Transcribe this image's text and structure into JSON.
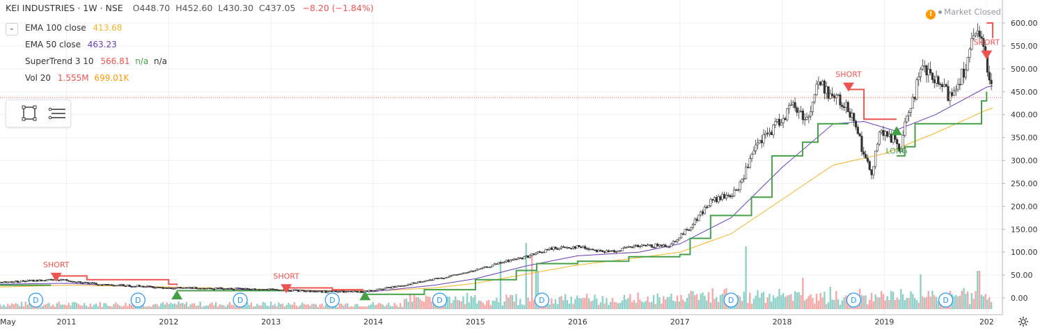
{
  "header": {
    "symbol": "KEI INDUSTRIES · 1W · NSE",
    "open": "O448.70",
    "high": "H452.60",
    "low": "L430.30",
    "close": "C437.05",
    "change": "−8.20 (−1.84%)"
  },
  "indicators": [
    {
      "name": "EMA 100 close",
      "value": "413.68",
      "color": "#f5b324"
    },
    {
      "name": "EMA 50 close",
      "value": "463.23",
      "color": "#673ab7"
    },
    {
      "name": "SuperTrend 3 10",
      "value": "566.81",
      "extra1": "n/a",
      "extra2": "n/a",
      "color": "#ef5350",
      "extra_color": "#43a047"
    },
    {
      "name": "Vol 20",
      "value": "1.555M",
      "extra1": "699.01K",
      "color": "#ef5350",
      "extra_color": "#ff9800"
    }
  ],
  "market_status": {
    "icon": "warning-icon",
    "text": "Market Closed"
  },
  "toolbar": {
    "icons": [
      "rectangle-icon",
      "menu-lines-icon"
    ]
  },
  "settings_icon": "gear-icon",
  "colors": {
    "up": "#26a69a",
    "down": "#ef5350",
    "st_up": "#43a047",
    "st_down": "#ef5350",
    "ema50": "#673ab7",
    "ema100": "#f5b324",
    "price_line": "#ef5350"
  },
  "chart_data": {
    "type": "candlestick",
    "title": "KEI INDUSTRIES · 1W · NSE",
    "y_axis_ticks": [
      "600.00",
      "550.00",
      "500.00",
      "450.00",
      "400.00",
      "350.00",
      "300.00",
      "250.00",
      "200.00",
      "150.00",
      "100.00",
      "50.00",
      "0.00"
    ],
    "ylim": [
      -10,
      620
    ],
    "x_axis_ticks": [
      "May",
      "2011",
      "2012",
      "2013",
      "2014",
      "2015",
      "2016",
      "2017",
      "2018",
      "2019",
      "202"
    ],
    "last_price_label": "437.05",
    "last_price": 437.05,
    "price_series": [
      {
        "t": 2010.35,
        "v": 34
      },
      {
        "t": 2010.7,
        "v": 38
      },
      {
        "t": 2010.95,
        "v": 40
      },
      {
        "t": 2011.3,
        "v": 30
      },
      {
        "t": 2011.7,
        "v": 26
      },
      {
        "t": 2012.0,
        "v": 22
      },
      {
        "t": 2012.5,
        "v": 21
      },
      {
        "t": 2013.0,
        "v": 18
      },
      {
        "t": 2013.5,
        "v": 14
      },
      {
        "t": 2013.9,
        "v": 13
      },
      {
        "t": 2014.3,
        "v": 28
      },
      {
        "t": 2014.7,
        "v": 45
      },
      {
        "t": 2015.0,
        "v": 60
      },
      {
        "t": 2015.3,
        "v": 80
      },
      {
        "t": 2015.5,
        "v": 90
      },
      {
        "t": 2015.75,
        "v": 108
      },
      {
        "t": 2016.0,
        "v": 112
      },
      {
        "t": 2016.3,
        "v": 100
      },
      {
        "t": 2016.55,
        "v": 112
      },
      {
        "t": 2016.9,
        "v": 115
      },
      {
        "t": 2017.1,
        "v": 155
      },
      {
        "t": 2017.3,
        "v": 210
      },
      {
        "t": 2017.55,
        "v": 230
      },
      {
        "t": 2017.75,
        "v": 330
      },
      {
        "t": 2017.95,
        "v": 380
      },
      {
        "t": 2018.1,
        "v": 420
      },
      {
        "t": 2018.25,
        "v": 390
      },
      {
        "t": 2018.35,
        "v": 470
      },
      {
        "t": 2018.55,
        "v": 430
      },
      {
        "t": 2018.7,
        "v": 400
      },
      {
        "t": 2018.8,
        "v": 310
      },
      {
        "t": 2018.87,
        "v": 270
      },
      {
        "t": 2018.95,
        "v": 360
      },
      {
        "t": 2019.1,
        "v": 345
      },
      {
        "t": 2019.15,
        "v": 320
      },
      {
        "t": 2019.25,
        "v": 420
      },
      {
        "t": 2019.38,
        "v": 500
      },
      {
        "t": 2019.5,
        "v": 470
      },
      {
        "t": 2019.65,
        "v": 440
      },
      {
        "t": 2019.78,
        "v": 500
      },
      {
        "t": 2019.9,
        "v": 580
      },
      {
        "t": 2020.0,
        "v": 520
      },
      {
        "t": 2020.06,
        "v": 437
      }
    ],
    "ema50": [
      {
        "t": 2010.35,
        "v": 30
      },
      {
        "t": 2011.0,
        "v": 32
      },
      {
        "t": 2012.0,
        "v": 22
      },
      {
        "t": 2013.0,
        "v": 17
      },
      {
        "t": 2014.0,
        "v": 14
      },
      {
        "t": 2014.6,
        "v": 28
      },
      {
        "t": 2015.0,
        "v": 42
      },
      {
        "t": 2015.5,
        "v": 70
      },
      {
        "t": 2016.0,
        "v": 92
      },
      {
        "t": 2016.6,
        "v": 100
      },
      {
        "t": 2017.0,
        "v": 118
      },
      {
        "t": 2017.5,
        "v": 175
      },
      {
        "t": 2018.0,
        "v": 285
      },
      {
        "t": 2018.5,
        "v": 380
      },
      {
        "t": 2018.8,
        "v": 385
      },
      {
        "t": 2019.1,
        "v": 365
      },
      {
        "t": 2019.5,
        "v": 400
      },
      {
        "t": 2020.0,
        "v": 460
      },
      {
        "t": 2020.06,
        "v": 463
      }
    ],
    "ema100": [
      {
        "t": 2010.35,
        "v": 24
      },
      {
        "t": 2011.0,
        "v": 28
      },
      {
        "t": 2012.0,
        "v": 24
      },
      {
        "t": 2013.0,
        "v": 18
      },
      {
        "t": 2014.0,
        "v": 15
      },
      {
        "t": 2014.6,
        "v": 22
      },
      {
        "t": 2015.0,
        "v": 32
      },
      {
        "t": 2015.5,
        "v": 52
      },
      {
        "t": 2016.0,
        "v": 72
      },
      {
        "t": 2016.6,
        "v": 88
      },
      {
        "t": 2017.0,
        "v": 100
      },
      {
        "t": 2017.5,
        "v": 140
      },
      {
        "t": 2018.0,
        "v": 215
      },
      {
        "t": 2018.5,
        "v": 290
      },
      {
        "t": 2019.0,
        "v": 315
      },
      {
        "t": 2019.5,
        "v": 360
      },
      {
        "t": 2020.0,
        "v": 410
      },
      {
        "t": 2020.06,
        "v": 414
      }
    ],
    "supertrend": [
      {
        "dir": "up",
        "points": [
          {
            "t": 2010.35,
            "v": 28
          },
          {
            "t": 2010.85,
            "v": 28
          }
        ]
      },
      {
        "dir": "down",
        "points": [
          {
            "t": 2010.9,
            "v": 48
          },
          {
            "t": 2011.2,
            "v": 40
          },
          {
            "t": 2012.0,
            "v": 30
          },
          {
            "t": 2012.08,
            "v": 28
          }
        ]
      },
      {
        "dir": "up",
        "points": [
          {
            "t": 2012.08,
            "v": 16
          },
          {
            "t": 2013.15,
            "v": 16
          }
        ]
      },
      {
        "dir": "down",
        "points": [
          {
            "t": 2013.15,
            "v": 22
          },
          {
            "t": 2013.6,
            "v": 18
          },
          {
            "t": 2013.9,
            "v": 16
          }
        ]
      },
      {
        "dir": "up",
        "points": [
          {
            "t": 2013.9,
            "v": 8
          },
          {
            "t": 2014.5,
            "v": 18
          },
          {
            "t": 2015.0,
            "v": 40
          },
          {
            "t": 2015.4,
            "v": 60
          },
          {
            "t": 2015.6,
            "v": 75
          },
          {
            "t": 2016.0,
            "v": 80
          },
          {
            "t": 2016.5,
            "v": 90
          },
          {
            "t": 2017.0,
            "v": 95
          },
          {
            "t": 2017.1,
            "v": 130
          },
          {
            "t": 2017.3,
            "v": 180
          },
          {
            "t": 2017.7,
            "v": 220
          },
          {
            "t": 2017.9,
            "v": 310
          },
          {
            "t": 2018.2,
            "v": 340
          },
          {
            "t": 2018.35,
            "v": 380
          },
          {
            "t": 2018.65,
            "v": 380
          }
        ]
      },
      {
        "dir": "down",
        "points": [
          {
            "t": 2018.65,
            "v": 455
          },
          {
            "t": 2018.75,
            "v": 455
          },
          {
            "t": 2018.8,
            "v": 390
          },
          {
            "t": 2019.12,
            "v": 390
          }
        ]
      },
      {
        "dir": "up",
        "points": [
          {
            "t": 2019.12,
            "v": 310
          },
          {
            "t": 2019.2,
            "v": 330
          },
          {
            "t": 2019.3,
            "v": 380
          },
          {
            "t": 2019.7,
            "v": 380
          },
          {
            "t": 2019.95,
            "v": 430
          },
          {
            "t": 2020.0,
            "v": 450
          }
        ]
      },
      {
        "dir": "down",
        "points": [
          {
            "t": 2020.0,
            "v": 600
          },
          {
            "t": 2020.06,
            "v": 567
          }
        ]
      }
    ],
    "signals": [
      {
        "t": 2010.9,
        "v": 55,
        "type": "sell",
        "label": "SHORT"
      },
      {
        "t": 2012.08,
        "v": -3,
        "type": "buy",
        "label": ""
      },
      {
        "t": 2013.15,
        "v": 30,
        "type": "sell",
        "label": "SHORT"
      },
      {
        "t": 2013.92,
        "v": -5,
        "type": "buy",
        "label": ""
      },
      {
        "t": 2018.65,
        "v": 470,
        "type": "sell",
        "label": "SHORT"
      },
      {
        "t": 2019.12,
        "v": 355,
        "type": "buy",
        "label": "LONG"
      },
      {
        "t": 2020.0,
        "v": 540,
        "type": "sell",
        "label": "SHORT"
      }
    ],
    "dividend_markers": {
      "label": "D",
      "times": [
        2010.7,
        2011.7,
        2012.7,
        2013.6,
        2014.65,
        2015.65,
        2017.5,
        2018.7,
        2019.6
      ]
    },
    "volume_spikes": [
      {
        "t": 2015.25,
        "v": 0.7
      },
      {
        "t": 2015.5,
        "v": 0.95
      },
      {
        "t": 2015.55,
        "v": 0.8
      },
      {
        "t": 2015.6,
        "v": 0.55
      },
      {
        "t": 2017.65,
        "v": 0.9
      },
      {
        "t": 2018.2,
        "v": 0.45
      },
      {
        "t": 2019.35,
        "v": 0.5
      },
      {
        "t": 2019.92,
        "v": 0.55
      }
    ]
  }
}
